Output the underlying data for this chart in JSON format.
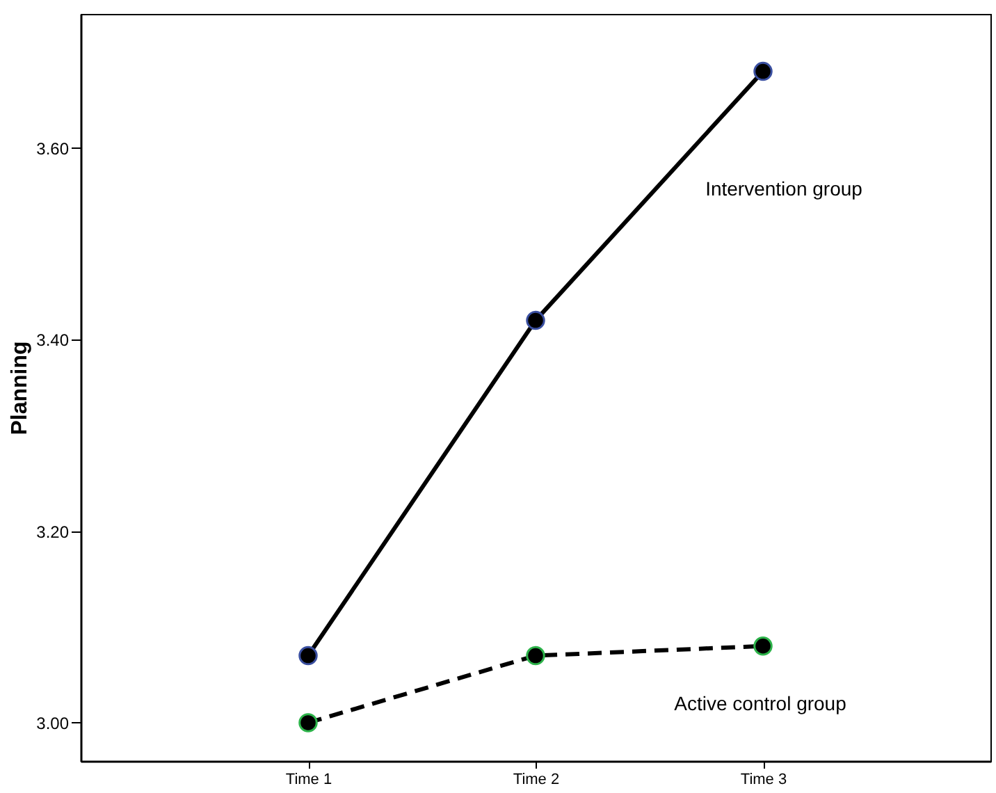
{
  "chart_data": {
    "type": "line",
    "ylabel": "Planning",
    "categories": [
      "Time 1",
      "Time 2",
      "Time 3"
    ],
    "series": [
      {
        "name": "Intervention group",
        "color": "#000000",
        "line_style": "solid",
        "values": [
          3.07,
          3.42,
          3.68
        ]
      },
      {
        "name": "Active control group",
        "color": "#000000",
        "line_style": "dashed",
        "values": [
          3.0,
          3.07,
          3.08
        ]
      }
    ],
    "ylim": [
      2.96,
      3.74
    ],
    "yticks": [
      {
        "value": 3.0,
        "label": "3.00"
      },
      {
        "value": 3.2,
        "label": "3.20"
      },
      {
        "value": 3.4,
        "label": "3.40"
      },
      {
        "value": 3.6,
        "label": "3.60"
      }
    ],
    "marker": "circle",
    "grid": false
  }
}
